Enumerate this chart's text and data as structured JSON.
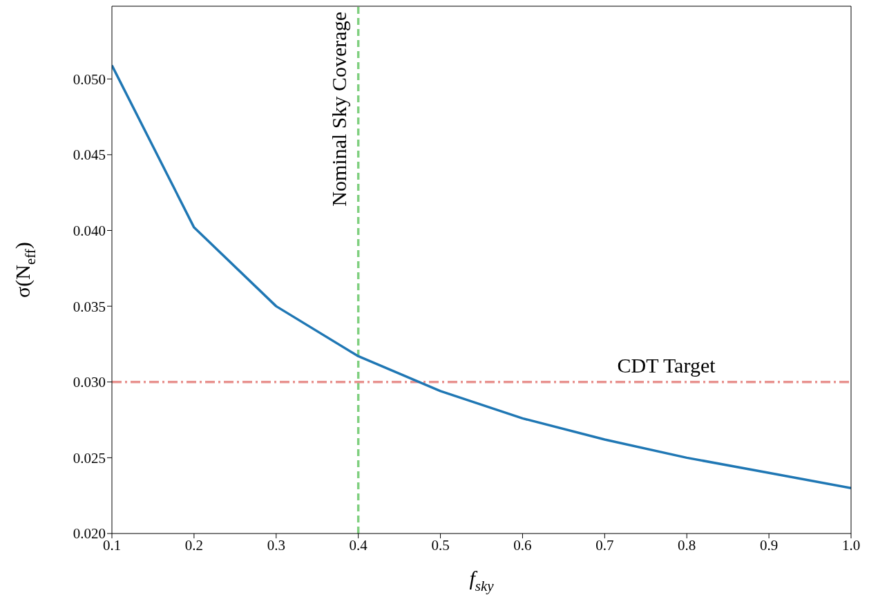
{
  "chart_data": {
    "type": "line",
    "xlabel": "f$_{sky}$",
    "ylabel": "σ(N$_{eff}$)",
    "x": [
      0.1,
      0.2,
      0.3,
      0.4,
      0.5,
      0.6,
      0.7,
      0.8,
      0.9,
      1.0
    ],
    "series": [
      {
        "color": "#1f77b4",
        "values": [
          0.0509,
          0.0402,
          0.035,
          0.0317,
          0.0294,
          0.0276,
          0.0262,
          0.025,
          0.024,
          0.023
        ]
      }
    ],
    "xlim": [
      0.1,
      1.0
    ],
    "xticks": [
      0.1,
      0.2,
      0.3,
      0.4,
      0.5,
      0.6,
      0.7,
      0.8,
      0.9,
      {
        "value": 1.0,
        "label": "1.0"
      }
    ],
    "ylim": [
      0.02,
      0.0548
    ],
    "yticks": [
      {
        "value": 0.02,
        "label": "0.020"
      },
      {
        "value": 0.025,
        "label": "0.025"
      },
      {
        "value": 0.03,
        "label": "0.030"
      },
      {
        "value": 0.035,
        "label": "0.035"
      },
      {
        "value": 0.04,
        "label": "0.040"
      },
      {
        "value": 0.045,
        "label": "0.045"
      },
      {
        "value": 0.05,
        "label": "0.050"
      }
    ],
    "ref_lines": [
      {
        "axis": "x",
        "value": 0.4,
        "label": "Nominal Sky Coverage",
        "color": "#7fcf7f",
        "line_style": "dashed"
      },
      {
        "axis": "y",
        "value": 0.03,
        "label": "CDT Target",
        "color": "#e8928f",
        "line_style": "dashdot"
      }
    ],
    "grid": false,
    "legend": false,
    "marker": "none",
    "line_style": "solid"
  }
}
